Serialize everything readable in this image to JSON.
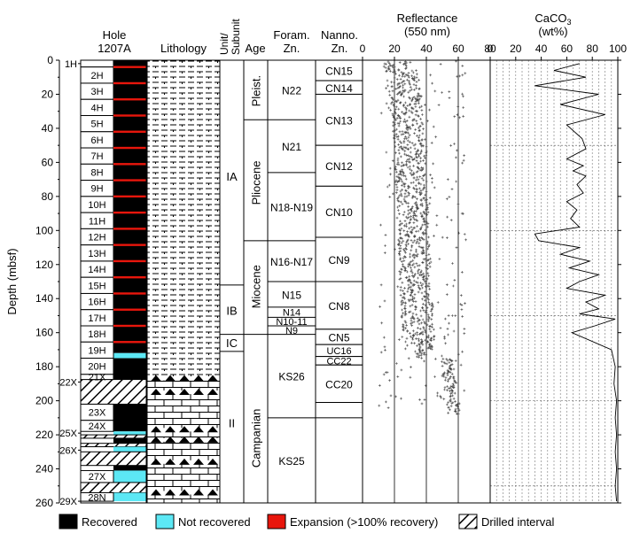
{
  "headers": {
    "hole_line1": "Hole",
    "hole_line2": "1207A",
    "lithology": "Lithology",
    "unit_line1": "Unit/",
    "unit_line2": "Subunit",
    "age": "Age",
    "foram_line1": "Foram.",
    "foram_line2": "Zn.",
    "nanno_line1": "Nanno.",
    "nanno_line2": "Zn.",
    "reflectance_line1": "Reflectance",
    "reflectance_line2": "(550 nm)",
    "caco3_main": "CaCO",
    "caco3_sub": "3",
    "caco3_line2": "(wt%)"
  },
  "depth_axis": {
    "label": "Depth (mbsf)",
    "ticks": [
      "0",
      "20",
      "40",
      "60",
      "80",
      "100",
      "120",
      "140",
      "160",
      "180",
      "200",
      "220",
      "240",
      "260"
    ],
    "tick_values": [
      0,
      20,
      40,
      60,
      80,
      100,
      120,
      140,
      160,
      180,
      200,
      220,
      240,
      260
    ],
    "range": [
      0,
      260
    ]
  },
  "reflectance_axis": {
    "ticks": [
      "0",
      "20",
      "40",
      "60",
      "80"
    ],
    "tick_values": [
      0,
      20,
      40,
      60,
      80
    ],
    "range": [
      0,
      80
    ]
  },
  "caco3_axis": {
    "ticks": [
      "0",
      "20",
      "40",
      "60",
      "80",
      "100"
    ],
    "tick_values": [
      0,
      20,
      40,
      60,
      80,
      100
    ],
    "range": [
      0,
      100
    ]
  },
  "cores": [
    {
      "label": "1H",
      "top": 0,
      "bottom": 4,
      "recovered": true
    },
    {
      "label": "2H",
      "top": 4,
      "bottom": 13.5,
      "recovered": true
    },
    {
      "label": "3H",
      "top": 13.5,
      "bottom": 23,
      "recovered": true
    },
    {
      "label": "4H",
      "top": 23,
      "bottom": 32.5,
      "recovered": true
    },
    {
      "label": "5H",
      "top": 32.5,
      "bottom": 42,
      "recovered": true
    },
    {
      "label": "6H",
      "top": 42,
      "bottom": 51.5,
      "recovered": true
    },
    {
      "label": "7H",
      "top": 51.5,
      "bottom": 61,
      "recovered": true
    },
    {
      "label": "8H",
      "top": 61,
      "bottom": 70.5,
      "recovered": true
    },
    {
      "label": "9H",
      "top": 70.5,
      "bottom": 80,
      "recovered": true
    },
    {
      "label": "10H",
      "top": 80,
      "bottom": 89.5,
      "recovered": true
    },
    {
      "label": "11H",
      "top": 89.5,
      "bottom": 99,
      "recovered": true
    },
    {
      "label": "12H",
      "top": 99,
      "bottom": 108.5,
      "recovered": true
    },
    {
      "label": "13H",
      "top": 108.5,
      "bottom": 118,
      "recovered": true
    },
    {
      "label": "14H",
      "top": 118,
      "bottom": 127.5,
      "recovered": true
    },
    {
      "label": "15H",
      "top": 127.5,
      "bottom": 137,
      "recovered": true
    },
    {
      "label": "16H",
      "top": 137,
      "bottom": 146.5,
      "recovered": true
    },
    {
      "label": "17H",
      "top": 146.5,
      "bottom": 156,
      "recovered": true
    },
    {
      "label": "18H",
      "top": 156,
      "bottom": 165.5,
      "recovered": true
    },
    {
      "label": "19H",
      "top": 165.5,
      "bottom": 175,
      "recovered": true
    },
    {
      "label": "20H",
      "top": 175,
      "bottom": 184.5,
      "recovered": true
    },
    {
      "label": "21X",
      "top": 184.5,
      "bottom": 187.5,
      "recovered": true
    },
    {
      "label": "23X",
      "top": 202,
      "bottom": 211.5,
      "recovered": true
    },
    {
      "label": "24X",
      "top": 211.5,
      "bottom": 218,
      "recovered": true
    },
    {
      "label": "27X",
      "top": 241,
      "bottom": 248,
      "recovered": false
    },
    {
      "label": "28N",
      "top": 254,
      "bottom": 259,
      "recovered": false
    }
  ],
  "outside_cores": [
    {
      "label": "1H",
      "depth": 2
    },
    {
      "label": "22X",
      "depth": 189
    },
    {
      "label": "25X",
      "depth": 219
    },
    {
      "label": "26X",
      "depth": 229
    },
    {
      "label": "29X",
      "depth": 259
    }
  ],
  "core_segments": [
    {
      "top": 0,
      "bottom": 172,
      "type": "recovered"
    },
    {
      "top": 172,
      "bottom": 175,
      "type": "not_recovered"
    },
    {
      "top": 175,
      "bottom": 187.5,
      "type": "recovered"
    },
    {
      "top": 187.5,
      "bottom": 202,
      "type": "drilled"
    },
    {
      "top": 202,
      "bottom": 218,
      "type": "recovered"
    },
    {
      "top": 218,
      "bottom": 220,
      "type": "not_recovered"
    },
    {
      "top": 220,
      "bottom": 222,
      "type": "drilled"
    },
    {
      "top": 222,
      "bottom": 225,
      "type": "recovered"
    },
    {
      "top": 225,
      "bottom": 227,
      "type": "drilled"
    },
    {
      "top": 227,
      "bottom": 230,
      "type": "not_recovered"
    },
    {
      "top": 230,
      "bottom": 238,
      "type": "drilled"
    },
    {
      "top": 238,
      "bottom": 241,
      "type": "recovered"
    },
    {
      "top": 241,
      "bottom": 248,
      "type": "not_recovered"
    },
    {
      "top": 248,
      "bottom": 254,
      "type": "drilled"
    },
    {
      "top": 254,
      "bottom": 259,
      "type": "not_recovered"
    }
  ],
  "expansion_depths": [
    4,
    13.5,
    23,
    32.5,
    42,
    51.5,
    61,
    70.5,
    80,
    89.5,
    99,
    108.5,
    118,
    127.5,
    137,
    146.5,
    156,
    165.5
  ],
  "lithology": [
    {
      "top": 0,
      "bottom": 187,
      "pattern": "nannofossil-ooze"
    },
    {
      "top": 187,
      "bottom": 260,
      "pattern": "chalk-with-chert"
    }
  ],
  "chert_bands": [
    187,
    195,
    217,
    223,
    236,
    254
  ],
  "units": [
    {
      "label": "IA",
      "top": 0,
      "bottom": 132,
      "label_depth": 68
    },
    {
      "label": "IB",
      "top": 132,
      "bottom": 161,
      "label_depth": 147
    },
    {
      "label": "IC",
      "top": 161,
      "bottom": 171,
      "label_depth": 166
    },
    {
      "label": "II",
      "top": 171,
      "bottom": 260,
      "label_depth": 213
    }
  ],
  "ages": [
    {
      "label": "Pleist.",
      "top": 0,
      "bottom": 35,
      "label_depth": 18
    },
    {
      "label": "Pliocene",
      "top": 35,
      "bottom": 106,
      "label_depth": 72
    },
    {
      "label": "Miocene",
      "top": 106,
      "bottom": 161,
      "label_depth": 133
    },
    {
      "label": "Campanian",
      "top": 161,
      "bottom": 260,
      "label_depth": 222
    }
  ],
  "foram_zones": [
    {
      "label": "N22",
      "top": 0,
      "bottom": 35
    },
    {
      "label": "N21",
      "top": 35,
      "bottom": 66
    },
    {
      "label": "N18-N19",
      "top": 66,
      "bottom": 106
    },
    {
      "label": "N16-N17",
      "top": 106,
      "bottom": 130
    },
    {
      "label": "N15",
      "top": 130,
      "bottom": 145
    },
    {
      "label": "N14",
      "top": 145,
      "bottom": 151
    },
    {
      "label": "N10-11",
      "top": 151,
      "bottom": 156
    },
    {
      "label": "N9",
      "top": 156,
      "bottom": 161
    },
    {
      "label": "KS26",
      "top": 161,
      "bottom": 210
    },
    {
      "label": "KS25",
      "top": 210,
      "bottom": 260
    }
  ],
  "nanno_zones": [
    {
      "label": "CN15",
      "top": 0,
      "bottom": 12
    },
    {
      "label": "CN14",
      "top": 12,
      "bottom": 20
    },
    {
      "label": "CN13",
      "top": 20,
      "bottom": 50
    },
    {
      "label": "CN12",
      "top": 50,
      "bottom": 74
    },
    {
      "label": "CN10",
      "top": 74,
      "bottom": 104
    },
    {
      "label": "CN9",
      "top": 104,
      "bottom": 130
    },
    {
      "label": "CN8",
      "top": 130,
      "bottom": 158
    },
    {
      "label": "CN5",
      "top": 158,
      "bottom": 167
    },
    {
      "label": "UC16",
      "top": 167,
      "bottom": 174
    },
    {
      "label": "CC22",
      "top": 174,
      "bottom": 179
    },
    {
      "label": "CC20",
      "top": 179,
      "bottom": 201
    },
    {
      "label": "",
      "top": 201,
      "bottom": 210
    }
  ],
  "caco3_dashed_depths": [
    50,
    100,
    150,
    200,
    250
  ],
  "caco3_curve": [
    [
      70,
      2
    ],
    [
      50,
      6
    ],
    [
      75,
      10
    ],
    [
      35,
      15
    ],
    [
      85,
      20
    ],
    [
      55,
      26
    ],
    [
      90,
      32
    ],
    [
      60,
      38
    ],
    [
      72,
      46
    ],
    [
      75,
      52
    ],
    [
      60,
      58
    ],
    [
      73,
      62
    ],
    [
      65,
      65
    ],
    [
      75,
      68
    ],
    [
      68,
      73
    ],
    [
      73,
      78
    ],
    [
      60,
      83
    ],
    [
      68,
      88
    ],
    [
      63,
      93
    ],
    [
      70,
      98
    ],
    [
      35,
      102
    ],
    [
      38,
      106
    ],
    [
      70,
      110
    ],
    [
      55,
      114
    ],
    [
      78,
      118
    ],
    [
      62,
      122
    ],
    [
      85,
      126
    ],
    [
      70,
      130
    ],
    [
      60,
      134
    ],
    [
      90,
      138
    ],
    [
      75,
      142
    ],
    [
      85,
      146
    ],
    [
      70,
      149
    ],
    [
      98,
      152
    ],
    [
      82,
      156
    ],
    [
      64,
      160
    ],
    [
      95,
      170
    ],
    [
      98,
      180
    ],
    [
      97,
      190
    ],
    [
      99,
      200
    ],
    [
      98,
      210
    ],
    [
      99,
      220
    ],
    [
      98,
      230
    ],
    [
      99,
      240
    ],
    [
      98,
      250
    ],
    [
      99,
      259
    ]
  ],
  "legend": [
    {
      "label": "Recovered",
      "swatch": "recovered"
    },
    {
      "label": "Not recovered",
      "swatch": "not_recovered"
    },
    {
      "label": "Expansion (>100% recovery)",
      "swatch": "expansion"
    },
    {
      "label": "Drilled interval",
      "swatch": "drilled"
    }
  ],
  "colors": {
    "recovered": "#000000",
    "not_recovered": "#5ce8f5",
    "expansion": "#e8160c",
    "line": "#000000",
    "reflectance_points": "#444444"
  }
}
